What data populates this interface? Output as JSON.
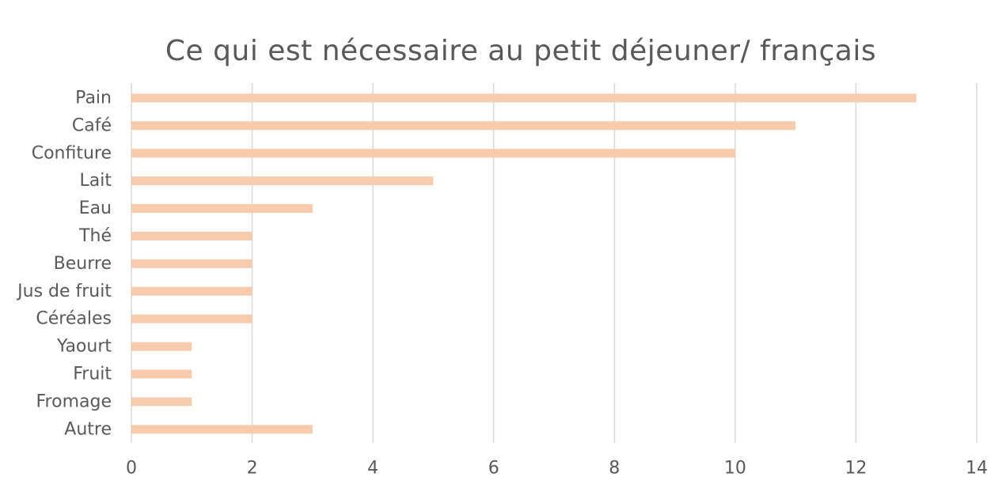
{
  "chart_data": {
    "type": "bar",
    "orientation": "horizontal",
    "title": "Ce qui est nécessaire au petit déjeuner/ français",
    "categories": [
      "Pain",
      "Café",
      "Confiture",
      "Lait",
      "Eau",
      "Thé",
      "Beurre",
      "Jus de fruit",
      "Céréales",
      "Yaourt",
      "Fruit",
      "Fromage",
      "Autre"
    ],
    "values": [
      13,
      11,
      10,
      5,
      3,
      2,
      2,
      2,
      2,
      1,
      1,
      1,
      3
    ],
    "xlim": [
      0,
      14
    ],
    "xticks": [
      0,
      2,
      4,
      6,
      8,
      10,
      12,
      14
    ],
    "xlabel": "",
    "ylabel": "",
    "grid": "vertical",
    "legend": "none",
    "bar_color": "#F8CBAD",
    "grid_color": "#D9D9D9",
    "text_color": "#595959"
  }
}
